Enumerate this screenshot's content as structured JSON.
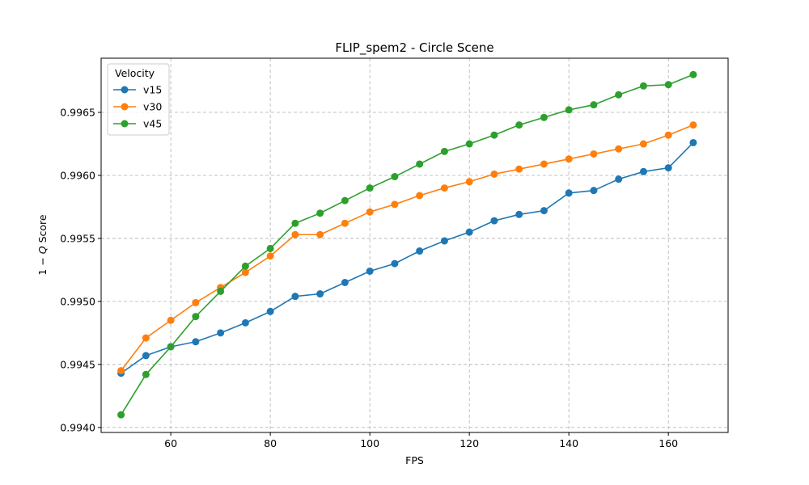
{
  "chart_data": {
    "type": "line",
    "title": "FLIP_spem2 - Circle Scene",
    "xlabel": "FPS",
    "ylabel_main": "1 − ",
    "ylabel_var": "Q",
    "ylabel_suffix": " Score",
    "xlim": [
      46,
      172
    ],
    "ylim": [
      0.99396,
      0.99693
    ],
    "xticks": [
      60,
      80,
      100,
      120,
      140,
      160
    ],
    "xtick_labels": [
      "60",
      "80",
      "100",
      "120",
      "140",
      "160"
    ],
    "yticks": [
      0.994,
      0.9945,
      0.995,
      0.9955,
      0.996,
      0.9965
    ],
    "ytick_labels": [
      "0.9940",
      "0.9945",
      "0.9950",
      "0.9955",
      "0.9960",
      "0.9965"
    ],
    "grid": true,
    "legend": {
      "title": "Velocity",
      "placement": "upper-left"
    },
    "x": [
      50,
      55,
      60,
      65,
      70,
      75,
      80,
      85,
      90,
      95,
      100,
      105,
      110,
      115,
      120,
      125,
      130,
      135,
      140,
      145,
      150,
      155,
      160,
      165
    ],
    "series": [
      {
        "name": "v15",
        "color": "#1f77b4",
        "values": [
          0.99443,
          0.99457,
          0.99464,
          0.99468,
          0.99475,
          0.99483,
          0.99492,
          0.99504,
          0.99506,
          0.99515,
          0.99524,
          0.9953,
          0.9954,
          0.99548,
          0.99555,
          0.99564,
          0.99569,
          0.99572,
          0.99586,
          0.99588,
          0.99597,
          0.99603,
          0.99606,
          0.99626
        ]
      },
      {
        "name": "v30",
        "color": "#ff7f0e",
        "values": [
          0.99445,
          0.99471,
          0.99485,
          0.99499,
          0.99511,
          0.99523,
          0.99536,
          0.99553,
          0.99553,
          0.99562,
          0.99571,
          0.99577,
          0.99584,
          0.9959,
          0.99595,
          0.99601,
          0.99605,
          0.99609,
          0.99613,
          0.99617,
          0.99621,
          0.99625,
          0.99632,
          0.9964
        ]
      },
      {
        "name": "v45",
        "color": "#2ca02c",
        "values": [
          0.9941,
          0.99442,
          0.99464,
          0.99488,
          0.99508,
          0.99528,
          0.99542,
          0.99562,
          0.9957,
          0.9958,
          0.9959,
          0.99599,
          0.99609,
          0.99619,
          0.99625,
          0.99632,
          0.9964,
          0.99646,
          0.99652,
          0.99656,
          0.99664,
          0.99671,
          0.99672,
          0.9968
        ]
      }
    ]
  }
}
